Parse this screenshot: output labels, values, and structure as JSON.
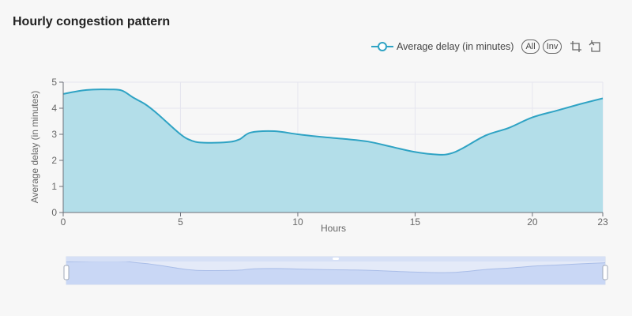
{
  "chart_data": {
    "type": "area",
    "title": "Hourly congestion pattern",
    "xlabel": "Hours",
    "ylabel": "Average delay (in minutes)",
    "xlim": [
      0,
      23
    ],
    "ylim": [
      0,
      5
    ],
    "x_ticks": [
      "0",
      "5",
      "10",
      "15",
      "20",
      "23"
    ],
    "y_ticks": [
      "0",
      "1",
      "2",
      "3",
      "4",
      "5"
    ],
    "grid": true,
    "legend_position": "top-right",
    "series": [
      {
        "name": "Average delay (in minutes)",
        "color": "#2fa3c4",
        "fill": "#b3dee9",
        "x": [
          0,
          1,
          2,
          2.5,
          3,
          3.5,
          4,
          5,
          5.5,
          6,
          7,
          7.5,
          8,
          9,
          10,
          11,
          12,
          13,
          14,
          15,
          16,
          16.5,
          17,
          18,
          19,
          20,
          21,
          22,
          23
        ],
        "y": [
          4.55,
          4.7,
          4.72,
          4.68,
          4.4,
          4.15,
          3.8,
          3.0,
          2.75,
          2.68,
          2.7,
          2.8,
          3.07,
          3.12,
          3.0,
          2.9,
          2.82,
          2.72,
          2.52,
          2.32,
          2.22,
          2.26,
          2.45,
          2.95,
          3.25,
          3.65,
          3.9,
          4.15,
          4.38
        ]
      }
    ]
  },
  "legend": {
    "label": "Average delay (in minutes)",
    "all_label": "All",
    "inv_label": "Inv"
  },
  "toolbox": {
    "icons": [
      "data-zoom-icon",
      "zoom-reset-icon"
    ]
  },
  "data_zoom": {
    "start_percent": 0,
    "end_percent": 100
  }
}
